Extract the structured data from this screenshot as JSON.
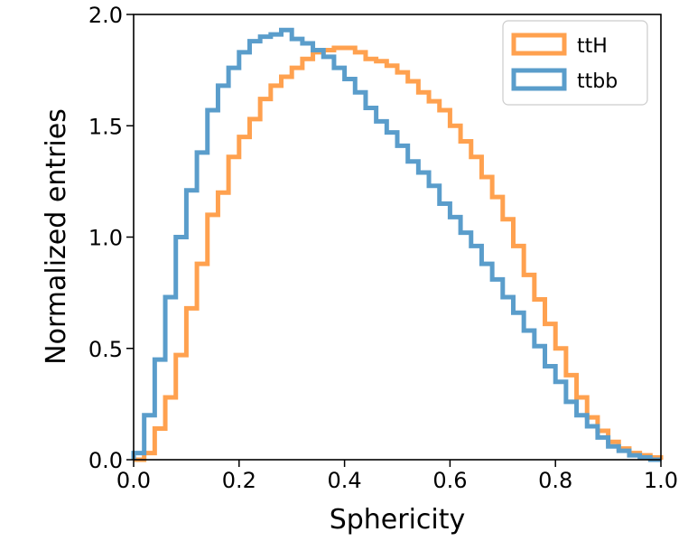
{
  "chart_data": {
    "type": "histogram",
    "title": "",
    "xlabel": "Sphericity",
    "ylabel": "Normalized entries",
    "xlim": [
      0.0,
      1.0
    ],
    "ylim": [
      0.0,
      2.0
    ],
    "xticks": [
      "0.0",
      "0.2",
      "0.4",
      "0.6",
      "0.8",
      "1.0"
    ],
    "yticks": [
      "0.0",
      "0.5",
      "1.0",
      "1.5",
      "2.0"
    ],
    "bin_width": 0.02,
    "legend": {
      "position": "top-right"
    },
    "series": [
      {
        "name": "ttH",
        "color": "#ffa14f",
        "values": [
          0.0,
          0.03,
          0.14,
          0.28,
          0.47,
          0.68,
          0.88,
          1.1,
          1.2,
          1.36,
          1.45,
          1.53,
          1.62,
          1.68,
          1.72,
          1.76,
          1.8,
          1.83,
          1.84,
          1.85,
          1.85,
          1.83,
          1.8,
          1.79,
          1.77,
          1.74,
          1.7,
          1.65,
          1.61,
          1.57,
          1.5,
          1.43,
          1.36,
          1.27,
          1.18,
          1.08,
          0.96,
          0.83,
          0.72,
          0.61,
          0.5,
          0.38,
          0.28,
          0.19,
          0.13,
          0.08,
          0.05,
          0.03,
          0.02,
          0.01
        ]
      },
      {
        "name": "ttbb",
        "color": "#5a9dcb",
        "values": [
          0.03,
          0.2,
          0.45,
          0.73,
          1.0,
          1.21,
          1.38,
          1.57,
          1.68,
          1.76,
          1.83,
          1.88,
          1.9,
          1.91,
          1.93,
          1.89,
          1.87,
          1.84,
          1.81,
          1.76,
          1.71,
          1.65,
          1.58,
          1.52,
          1.47,
          1.41,
          1.34,
          1.29,
          1.23,
          1.15,
          1.09,
          1.02,
          0.96,
          0.88,
          0.81,
          0.73,
          0.66,
          0.58,
          0.51,
          0.42,
          0.35,
          0.26,
          0.2,
          0.15,
          0.1,
          0.06,
          0.04,
          0.02,
          0.01,
          0.0
        ]
      }
    ]
  }
}
